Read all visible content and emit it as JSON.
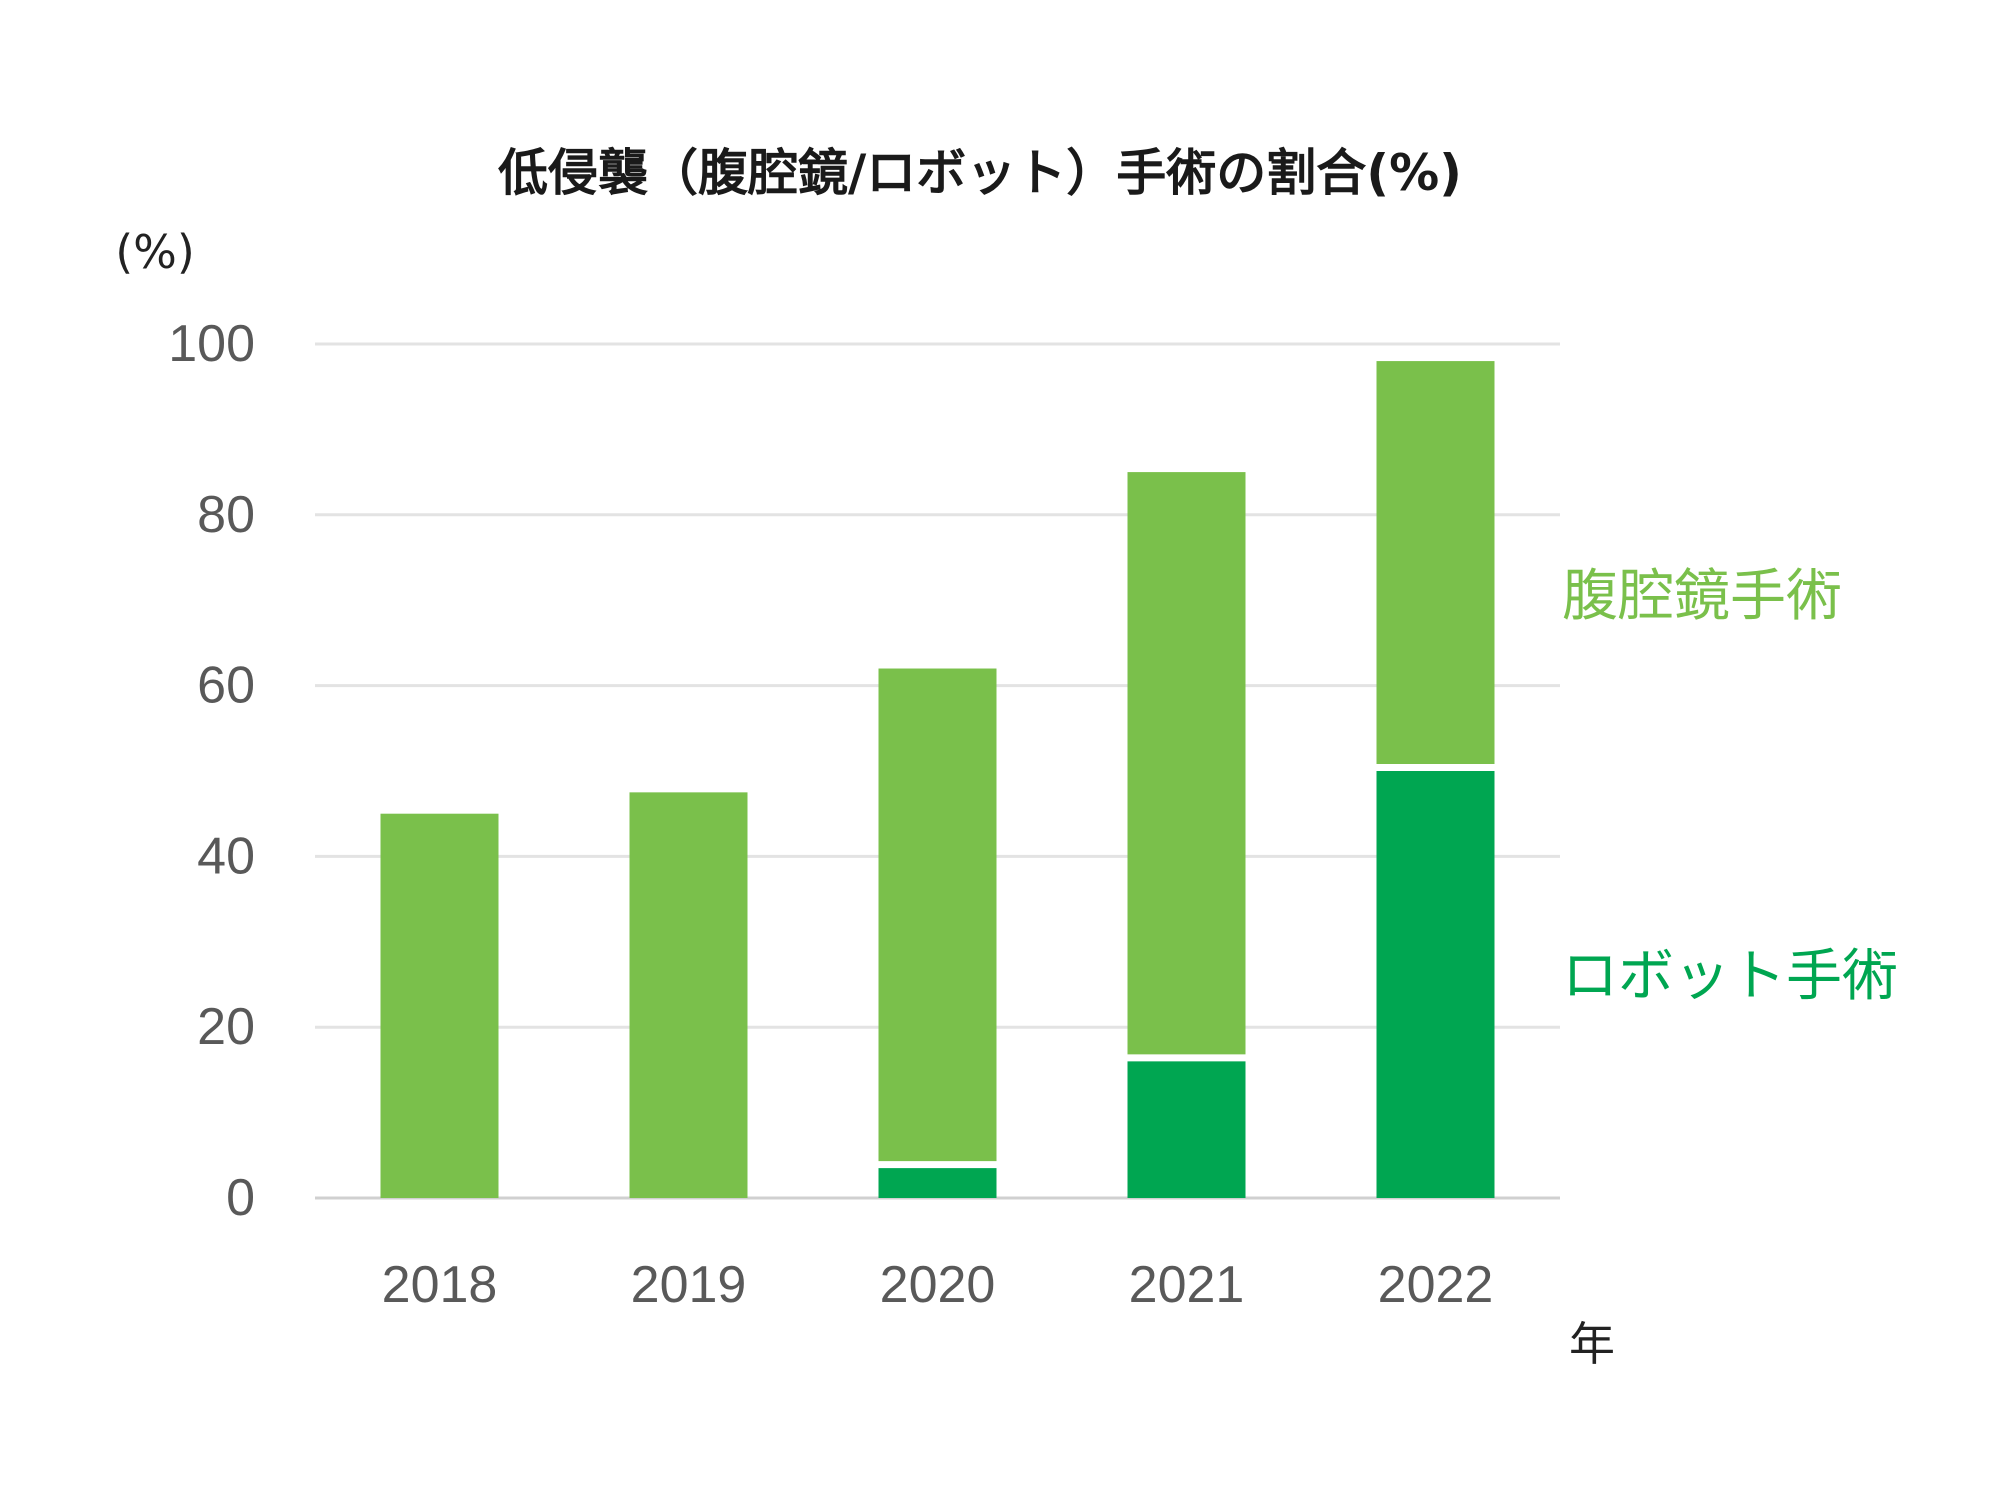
{
  "chart_data": {
    "type": "bar",
    "stacked": true,
    "title": "低侵襲（腹腔鏡/ロボット）手術の割合(%)",
    "ylabel": "(%)",
    "xlabel": "年",
    "categories": [
      "2018",
      "2019",
      "2020",
      "2021",
      "2022"
    ],
    "ylim": [
      0,
      100
    ],
    "yticks": [
      0,
      20,
      40,
      60,
      80,
      100
    ],
    "grid": true,
    "legend": "right",
    "series": [
      {
        "name": "ロボット手術",
        "color": "#00a651",
        "values": [
          0,
          0,
          3.5,
          16,
          50
        ]
      },
      {
        "name": "腹腔鏡手術",
        "color": "#7ac04b",
        "values": [
          45,
          47.5,
          58.5,
          69,
          48
        ]
      }
    ]
  }
}
